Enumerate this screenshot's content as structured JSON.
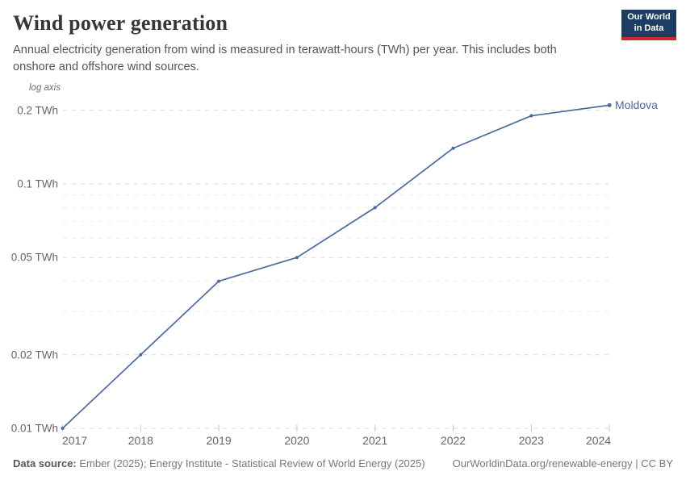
{
  "header": {
    "title": "Wind power generation",
    "subtitle": "Annual electricity generation from wind is measured in terawatt-hours (TWh) per year. This includes both onshore and offshore wind sources.",
    "logo": {
      "line1": "Our World",
      "line2": "in Data",
      "bg_color": "#1d3d63",
      "accent_color": "#cb2a29"
    }
  },
  "chart_data": {
    "type": "line",
    "title": "Wind power generation",
    "entity_label": "Moldova",
    "unit": "TWh",
    "axis_note": "log axis",
    "x": [
      2017,
      2018,
      2019,
      2020,
      2021,
      2022,
      2023,
      2024
    ],
    "series": [
      {
        "name": "Moldova",
        "values": [
          0.01,
          0.02,
          0.04,
          0.05,
          0.08,
          0.14,
          0.19,
          0.21
        ],
        "color": "#4c6a9c"
      }
    ],
    "y_axis": {
      "scale": "log",
      "ylim": [
        0.01,
        0.22
      ],
      "major_ticks": [
        {
          "value": 0.2,
          "label": "0.2 TWh"
        },
        {
          "value": 0.1,
          "label": "0.1 TWh"
        },
        {
          "value": 0.05,
          "label": "0.05 TWh"
        },
        {
          "value": 0.02,
          "label": "0.02 TWh"
        },
        {
          "value": 0.01,
          "label": "0.01 TWh"
        }
      ],
      "minor_ticks": [
        0.03,
        0.04,
        0.06,
        0.07,
        0.08,
        0.09
      ]
    },
    "grid": true,
    "legend_position": "line-end-label"
  },
  "footer": {
    "source_label": "Data source:",
    "source_text": " Ember (2025); Energy Institute - Statistical Review of World Energy (2025)",
    "credit": "OurWorldinData.org/renewable-energy | CC BY"
  }
}
